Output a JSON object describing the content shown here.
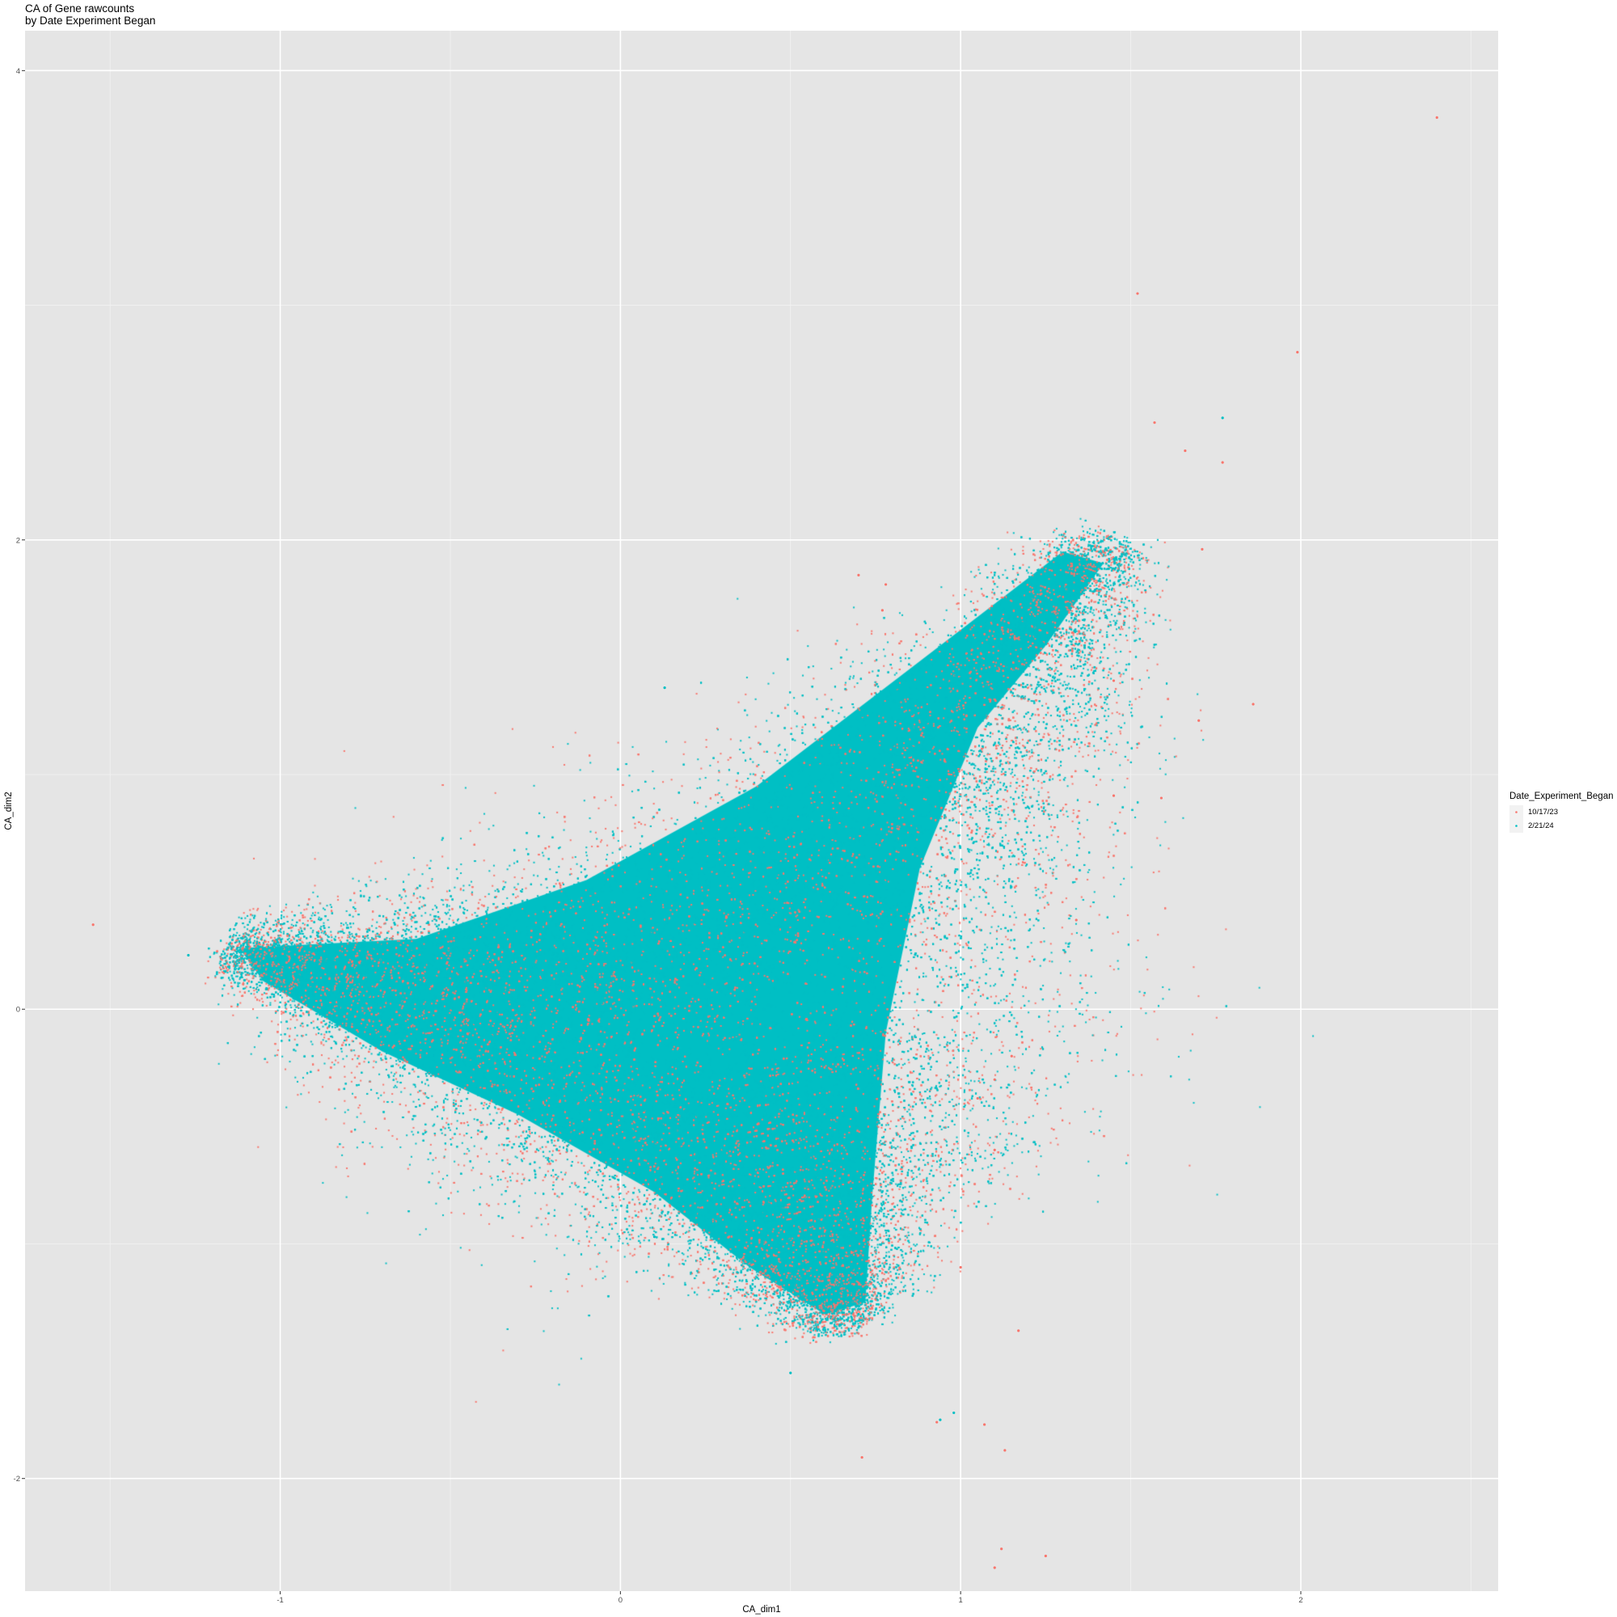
{
  "chart_data": {
    "type": "scatter",
    "title": "CA of Gene rawcounts",
    "subtitle": "by Date Experiment Began",
    "xlabel": "CA_dim1",
    "ylabel": "CA_dim2",
    "xlim": [
      -1.75,
      2.58
    ],
    "ylim": [
      -2.48,
      4.17
    ],
    "x_ticks": [
      -1,
      0,
      1,
      2
    ],
    "x_tick_labels": [
      "-1",
      "0",
      "1",
      "2"
    ],
    "y_ticks": [
      -2,
      0,
      2,
      4
    ],
    "y_tick_labels": [
      "-2",
      "0",
      "2",
      "4"
    ],
    "grid": true,
    "panel_background": "#e5e5e5",
    "legend": {
      "title": "Date_Experiment_Began",
      "placement": "right",
      "entries": [
        {
          "label": "10/17/23",
          "color": "#f8766d"
        },
        {
          "label": "2/21/24",
          "color": "#00bfc4"
        }
      ]
    },
    "cloud_shape": {
      "description": "three-armed dense cloud with arms toward upper-left, upper-right and bottom",
      "center": [
        0.35,
        -0.2
      ],
      "arm_tips": [
        [
          -1.15,
          0.25
        ],
        [
          1.45,
          2.0
        ],
        [
          0.65,
          -1.35
        ]
      ]
    },
    "series": [
      {
        "name": "10/17/23",
        "color": "#f8766d",
        "outliers": [
          [
            2.4,
            3.8
          ],
          [
            1.52,
            3.05
          ],
          [
            1.99,
            2.8
          ],
          [
            1.57,
            2.5
          ],
          [
            1.66,
            2.38
          ],
          [
            1.77,
            2.33
          ],
          [
            1.71,
            1.96
          ],
          [
            1.86,
            1.3
          ],
          [
            1.7,
            1.23
          ],
          [
            1.59,
            0.9
          ],
          [
            1.34,
            0.38
          ],
          [
            1.15,
            -0.2
          ],
          [
            1.1,
            -0.3
          ],
          [
            1.05,
            -0.38
          ],
          [
            1.1,
            -0.6
          ],
          [
            1.0,
            -1.1
          ],
          [
            1.17,
            -1.37
          ],
          [
            1.07,
            -1.77
          ],
          [
            1.13,
            -1.88
          ],
          [
            0.71,
            -1.91
          ],
          [
            1.12,
            -2.3
          ],
          [
            1.1,
            -2.38
          ],
          [
            1.25,
            -2.33
          ],
          [
            -1.55,
            0.36
          ],
          [
            0.93,
            -1.76
          ],
          [
            0.78,
            1.81
          ],
          [
            0.77,
            1.7
          ],
          [
            1.45,
            1.4
          ],
          [
            1.45,
            0.91
          ],
          [
            0.7,
            1.85
          ]
        ]
      },
      {
        "name": "2/21/24",
        "color": "#00bfc4",
        "outliers": [
          [
            1.77,
            2.52
          ],
          [
            0.13,
            1.37
          ],
          [
            0.5,
            -1.55
          ],
          [
            0.98,
            -1.72
          ],
          [
            0.94,
            -1.75
          ],
          [
            -1.27,
            0.23
          ],
          [
            0.7,
            -1.3
          ],
          [
            0.1,
            -0.97
          ]
        ]
      }
    ]
  }
}
